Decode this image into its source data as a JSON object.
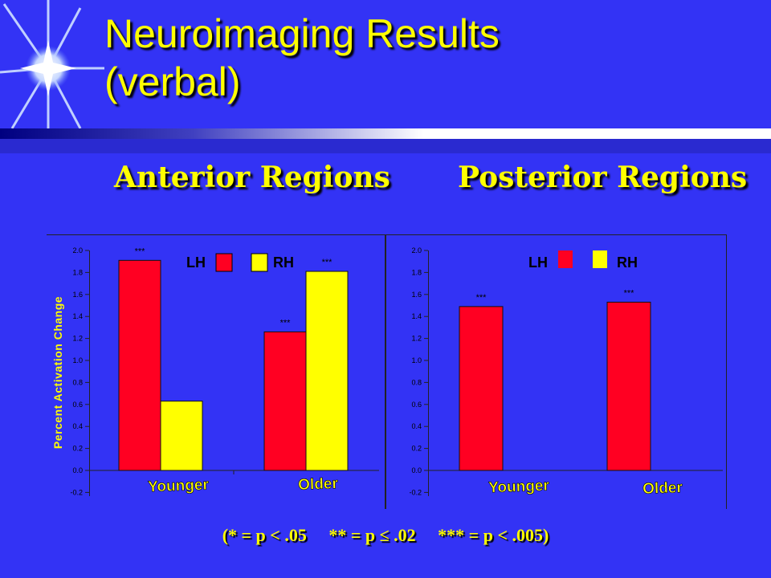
{
  "title": {
    "line1": "Neuroimaging Results",
    "line2": "(verbal)"
  },
  "sections": {
    "anterior": "Anterior Regions",
    "posterior": "Posterior Regions"
  },
  "footnote": "(* = p < .05     ** = p ≤ .02     *** = p < .005)",
  "colors": {
    "background": "#3333f5",
    "title": "#ffff00",
    "lh": "#ff0022",
    "rh": "#ffff00"
  },
  "chart_data": [
    {
      "type": "bar",
      "name": "Anterior Regions",
      "categories": [
        "Younger",
        "Older"
      ],
      "series": [
        {
          "name": "LH",
          "values": [
            1.91,
            1.26
          ],
          "significance": [
            "***",
            "***"
          ]
        },
        {
          "name": "RH",
          "values": [
            0.63,
            1.81
          ],
          "significance": [
            "",
            "***"
          ]
        }
      ],
      "ylabel": "Percent Activation Change",
      "ylim": [
        -0.2,
        2.0
      ],
      "yticks": [
        "-0.2",
        "0.0",
        "0.2",
        "0.4",
        "0.6",
        "0.8",
        "1.0",
        "1.2",
        "1.4",
        "1.6",
        "1.8",
        "2.0"
      ],
      "legend": [
        "LH",
        "RH"
      ],
      "legend_position": "top"
    },
    {
      "type": "bar",
      "name": "Posterior Regions",
      "categories": [
        "Younger",
        "Older"
      ],
      "series": [
        {
          "name": "LH",
          "values": [
            1.49,
            1.53
          ],
          "significance": [
            "***",
            "***"
          ]
        }
      ],
      "legend": [
        "LH",
        "RH"
      ],
      "legend_position": "top",
      "ylim": [
        -0.2,
        2.0
      ],
      "yticks": [
        "-0.2",
        "0.0",
        "0.2",
        "0.4",
        "0.6",
        "0.8",
        "1.0",
        "1.2",
        "1.4",
        "1.6",
        "1.8",
        "2.0"
      ]
    }
  ]
}
